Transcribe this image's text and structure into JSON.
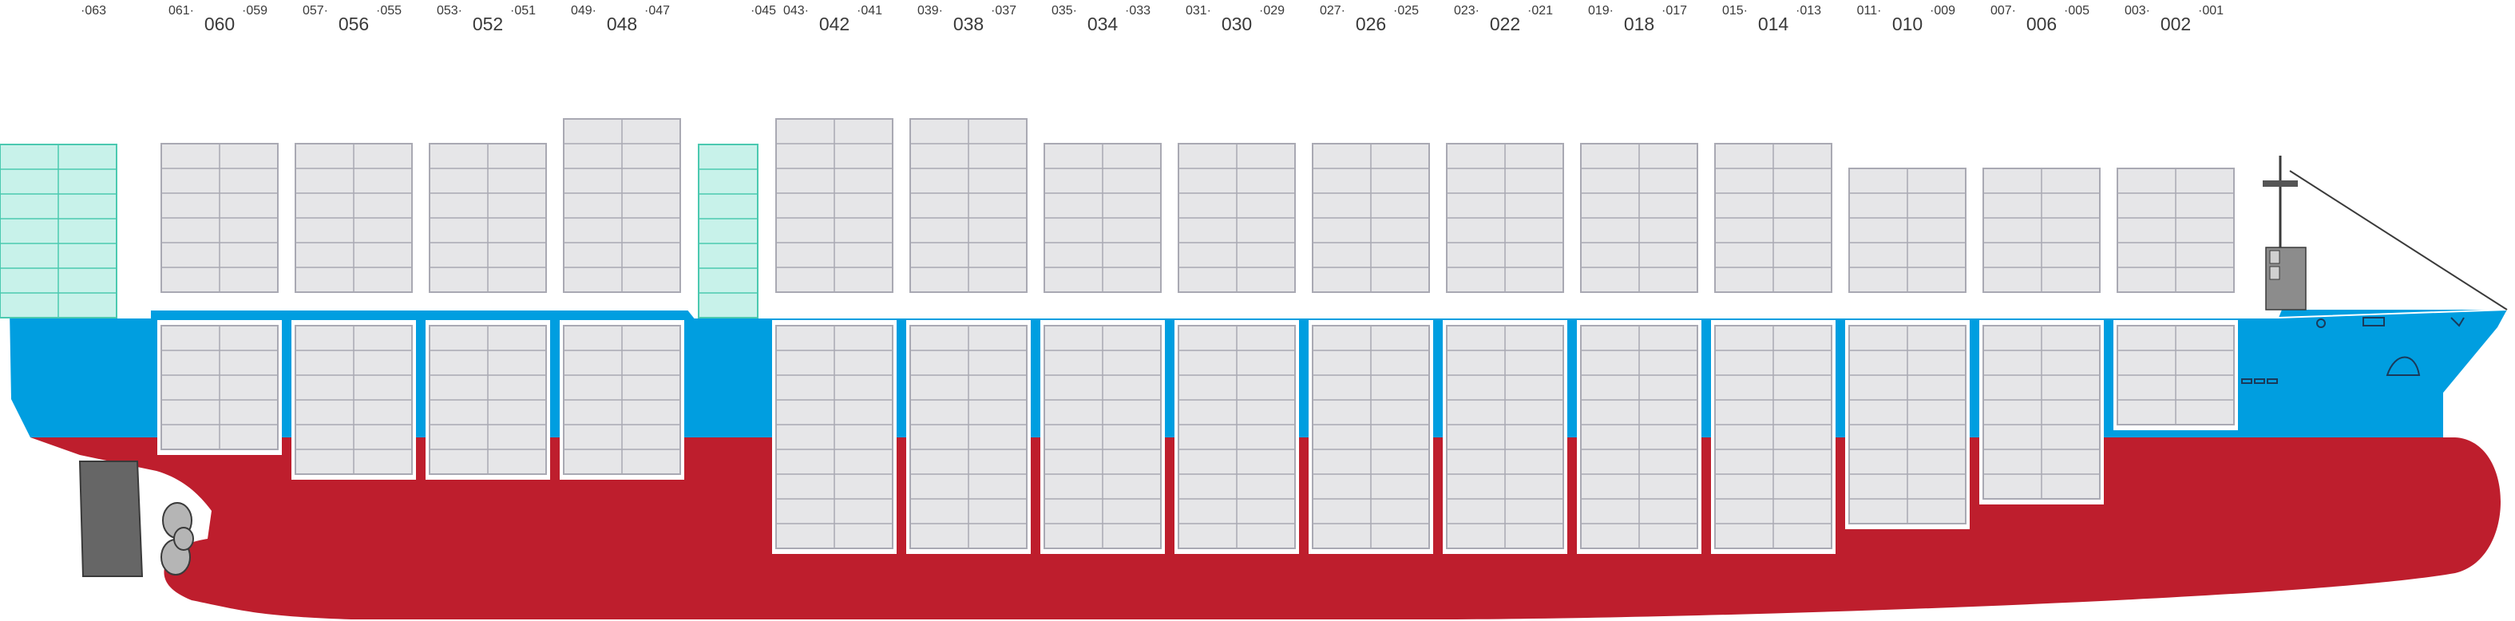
{
  "bays": [
    {
      "main": "",
      "left": "",
      "right": "063"
    },
    {
      "main": "060",
      "left": "061",
      "right": "059"
    },
    {
      "main": "056",
      "left": "057",
      "right": "055"
    },
    {
      "main": "052",
      "left": "053",
      "right": "051"
    },
    {
      "main": "048",
      "left": "049",
      "right": "047"
    },
    {
      "main": "",
      "left": "",
      "right": "045"
    },
    {
      "main": "042",
      "left": "043",
      "right": "041"
    },
    {
      "main": "038",
      "left": "039",
      "right": "037"
    },
    {
      "main": "034",
      "left": "035",
      "right": "033"
    },
    {
      "main": "030",
      "left": "031",
      "right": "029"
    },
    {
      "main": "026",
      "left": "027",
      "right": "025"
    },
    {
      "main": "022",
      "left": "023",
      "right": "021"
    },
    {
      "main": "018",
      "left": "019",
      "right": "017"
    },
    {
      "main": "014",
      "left": "015",
      "right": "013"
    },
    {
      "main": "010",
      "left": "011",
      "right": "009"
    },
    {
      "main": "006",
      "left": "007",
      "right": "005"
    },
    {
      "main": "002",
      "left": "003",
      "right": "001"
    }
  ],
  "stacks": {
    "on_deck_tiers": [
      7,
      6,
      6,
      6,
      7,
      7,
      7,
      7,
      6,
      6,
      6,
      6,
      6,
      6,
      5,
      5,
      5
    ],
    "hold_tiers": [
      0,
      5,
      6,
      6,
      6,
      0,
      9,
      9,
      9,
      9,
      9,
      9,
      9,
      9,
      8,
      7,
      4
    ],
    "reefer_bays": [
      "063",
      "045"
    ]
  },
  "colors": {
    "hull_blue": "#009ee0",
    "hull_red": "#be1e2d",
    "container_fill": "#e6e6e8",
    "container_stroke": "#a9a9b3",
    "reefer_fill": "#c8f2ea",
    "reefer_stroke": "#4bc9b0",
    "machinery_gray": "#666666"
  }
}
